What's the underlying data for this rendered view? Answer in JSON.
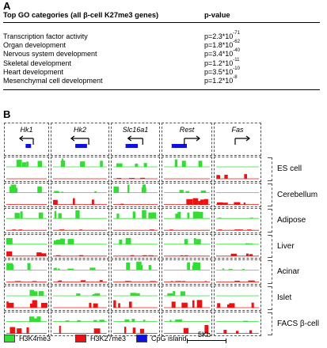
{
  "panel_a": {
    "letter": "A",
    "header_category": "Top GO categories (all β-cell K27me3 genes)",
    "header_pvalue": "p-value",
    "rows": [
      {
        "category": "Transcription factor activity",
        "p_base": "p=2.3*10",
        "p_exp": "-71"
      },
      {
        "category": "Organ development",
        "p_base": "p=1.8*10",
        "p_exp": "-62"
      },
      {
        "category": "Nervous system development",
        "p_base": "p=3.4*10",
        "p_exp": "-40"
      },
      {
        "category": "Skeletal development",
        "p_base": "p=1.2*10",
        "p_exp": "-11"
      },
      {
        "category": "Heart development",
        "p_base": "p=3.5*10",
        "p_exp": "-10"
      },
      {
        "category": "Mesenchymal cell development",
        "p_base": "p=1.2*10",
        "p_exp": "-8"
      }
    ]
  },
  "panel_b": {
    "letter": "B",
    "genes": [
      {
        "name": "Hk1",
        "arrow": "left"
      },
      {
        "name": "Hk2",
        "arrow": "left"
      },
      {
        "name": "Slc16a1",
        "arrow": "left"
      },
      {
        "name": "Rest",
        "arrow": "right"
      },
      {
        "name": "Fas",
        "arrow": "right"
      }
    ],
    "cell_types": [
      "ES cell",
      "Cerebellum",
      "Adipose",
      "Liver",
      "Acinar",
      "Islet",
      "FACS β-cell"
    ],
    "legend": {
      "h3k4me3": "H3K4me3",
      "h3k27me3": "H3K27me3",
      "cpg": "CpG island",
      "scale": "5Kb"
    },
    "colors": {
      "h3k4me3": "#33dd33",
      "h3k27me3": "#ee1111",
      "cpg": "#1111dd"
    }
  }
}
